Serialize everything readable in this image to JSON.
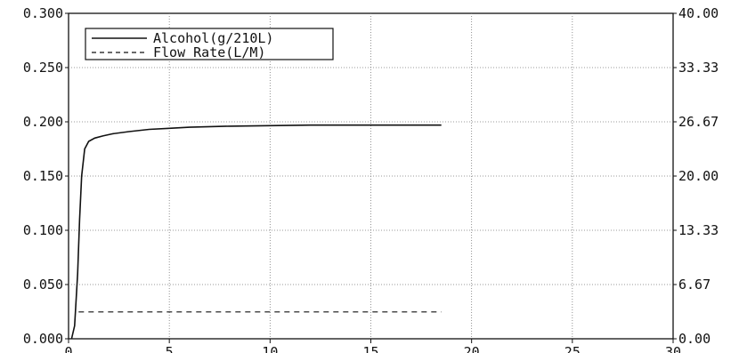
{
  "chart_data": {
    "type": "line",
    "title": "",
    "xlabel": "",
    "ylabel": "",
    "y2label": "",
    "xlim": [
      0,
      30
    ],
    "ylim": [
      0,
      0.3
    ],
    "y2lim": [
      0,
      40
    ],
    "x_ticks": [
      "0",
      "5",
      "10",
      "15",
      "20",
      "25",
      "30"
    ],
    "y_ticks": [
      "0.000",
      "0.050",
      "0.100",
      "0.150",
      "0.200",
      "0.250",
      "0.300"
    ],
    "y2_ticks": [
      "0.00",
      "6.67",
      "13.33",
      "20.00",
      "26.67",
      "33.33",
      "40.00"
    ],
    "grid": true,
    "legend_position": "top-left",
    "series": [
      {
        "name": "Alcohol(g/210L)",
        "axis": "left",
        "style": "solid",
        "x": [
          0.15,
          0.3,
          0.45,
          0.55,
          0.65,
          0.8,
          1.0,
          1.3,
          1.7,
          2.2,
          3.0,
          4.0,
          5.0,
          6.0,
          8.0,
          10.0,
          12.0,
          14.0,
          16.0,
          18.5
        ],
        "values": [
          0.0,
          0.012,
          0.06,
          0.11,
          0.15,
          0.175,
          0.182,
          0.185,
          0.187,
          0.189,
          0.191,
          0.193,
          0.194,
          0.195,
          0.196,
          0.1965,
          0.197,
          0.197,
          0.197,
          0.197
        ]
      },
      {
        "name": "Flow Rate(L/M)",
        "axis": "right",
        "style": "dashed",
        "x": [
          0.5,
          1.0,
          2.0,
          3.0,
          4.0,
          5.0,
          6.0,
          8.0,
          10.0,
          12.0,
          14.0,
          16.0,
          18.5
        ],
        "values": [
          3.3,
          3.3,
          3.3,
          3.3,
          3.3,
          3.3,
          3.3,
          3.3,
          3.3,
          3.3,
          3.3,
          3.3,
          3.3
        ]
      }
    ]
  },
  "colors": {
    "line": "#111111",
    "grid": "#777777",
    "background": "#ffffff"
  }
}
